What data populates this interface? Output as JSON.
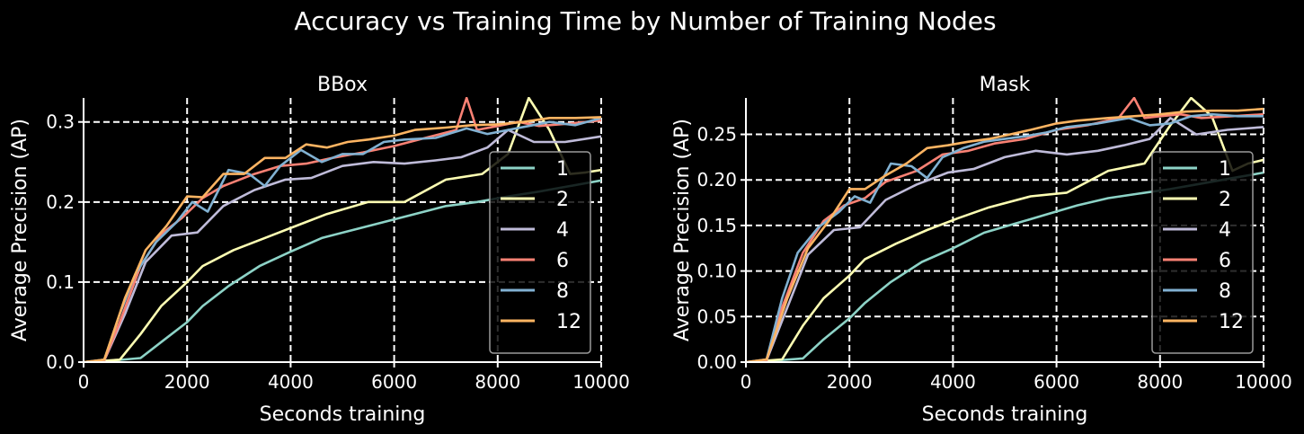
{
  "figure": {
    "suptitle": "Accuracy vs Training Time by Number of Training Nodes",
    "background": "#000000",
    "foreground": "#ffffff",
    "grid_color": "#ffffff"
  },
  "legend_colors": {
    "1": "#8dd3c7",
    "2": "#feffb3",
    "4": "#bfbbd9",
    "6": "#fa8174",
    "8": "#81b1d2",
    "12": "#fdb462"
  },
  "chart_data": [
    {
      "type": "line",
      "title": "BBox",
      "xlabel": "Seconds training",
      "ylabel": "Average Precision (AP)",
      "xlim": [
        0,
        10000
      ],
      "ylim": [
        0,
        0.33
      ],
      "xticks": [
        0,
        2000,
        4000,
        6000,
        8000,
        10000
      ],
      "xtick_labels": [
        "0",
        "2000",
        "4000",
        "6000",
        "8000",
        "10000"
      ],
      "yticks": [
        0,
        0.1,
        0.2,
        0.3
      ],
      "ytick_labels": [
        "0.0",
        "0.1",
        "0.2",
        "0.3"
      ],
      "grid": true,
      "legend": "lower-right",
      "series": [
        {
          "name": "1",
          "color": "#8dd3c7",
          "x": [
            0,
            400,
            1100,
            1500,
            2000,
            2300,
            2800,
            3400,
            4000,
            4600,
            5200,
            5800,
            6400,
            7000,
            7600,
            8200,
            8800,
            9400,
            10000
          ],
          "y": [
            0,
            0.001,
            0.005,
            0.025,
            0.05,
            0.07,
            0.095,
            0.12,
            0.138,
            0.155,
            0.165,
            0.175,
            0.185,
            0.195,
            0.2,
            0.207,
            0.213,
            0.22,
            0.227
          ]
        },
        {
          "name": "2",
          "color": "#feffb3",
          "x": [
            0,
            700,
            1100,
            1500,
            2000,
            2300,
            2900,
            3500,
            4100,
            4700,
            5500,
            6200,
            7000,
            7700,
            8200,
            8600,
            9000,
            9400,
            9700,
            10000
          ],
          "y": [
            0,
            0.003,
            0.035,
            0.07,
            0.1,
            0.12,
            0.14,
            0.155,
            0.17,
            0.185,
            0.2,
            0.2,
            0.228,
            0.235,
            0.26,
            0.33,
            0.29,
            0.235,
            0.237,
            0.24
          ]
        },
        {
          "name": "4",
          "color": "#bfbbd9",
          "x": [
            0,
            400,
            800,
            1200,
            1700,
            2200,
            2700,
            3300,
            3900,
            4400,
            5000,
            5600,
            6200,
            6800,
            7300,
            7800,
            8200,
            8700,
            9300,
            10000
          ],
          "y": [
            0,
            0.002,
            0.06,
            0.125,
            0.158,
            0.162,
            0.195,
            0.215,
            0.228,
            0.23,
            0.245,
            0.25,
            0.248,
            0.252,
            0.256,
            0.268,
            0.29,
            0.275,
            0.275,
            0.282
          ]
        },
        {
          "name": "6",
          "color": "#fa8174",
          "x": [
            0,
            400,
            700,
            1100,
            1500,
            1900,
            2300,
            2700,
            3300,
            3800,
            4300,
            4800,
            5400,
            6000,
            6600,
            7200,
            7400,
            7600,
            8000,
            8400,
            8800,
            9400,
            10000
          ],
          "y": [
            0,
            0.002,
            0.05,
            0.12,
            0.16,
            0.18,
            0.205,
            0.22,
            0.235,
            0.245,
            0.248,
            0.255,
            0.262,
            0.27,
            0.28,
            0.29,
            0.33,
            0.29,
            0.295,
            0.3,
            0.295,
            0.298,
            0.302
          ]
        },
        {
          "name": "8",
          "color": "#81b1d2",
          "x": [
            0,
            400,
            700,
            1000,
            1400,
            1800,
            2100,
            2400,
            2800,
            3200,
            3500,
            3800,
            4200,
            4600,
            5000,
            5400,
            5800,
            6200,
            6800,
            7400,
            7800,
            8200,
            8600,
            9000,
            9500,
            10000
          ],
          "y": [
            0,
            0.003,
            0.06,
            0.11,
            0.15,
            0.175,
            0.2,
            0.188,
            0.24,
            0.235,
            0.22,
            0.245,
            0.265,
            0.25,
            0.26,
            0.26,
            0.275,
            0.278,
            0.28,
            0.292,
            0.285,
            0.29,
            0.295,
            0.3,
            0.296,
            0.305
          ]
        },
        {
          "name": "12",
          "color": "#fdb462",
          "x": [
            0,
            400,
            800,
            1200,
            1600,
            2000,
            2300,
            2700,
            3100,
            3500,
            3900,
            4300,
            4700,
            5100,
            5500,
            6000,
            6400,
            7000,
            7500,
            8000,
            8500,
            9000,
            9500,
            10000
          ],
          "y": [
            0,
            0.003,
            0.08,
            0.14,
            0.17,
            0.207,
            0.206,
            0.235,
            0.235,
            0.255,
            0.255,
            0.272,
            0.268,
            0.275,
            0.278,
            0.283,
            0.29,
            0.293,
            0.296,
            0.297,
            0.3,
            0.305,
            0.305,
            0.306
          ]
        }
      ]
    },
    {
      "type": "line",
      "title": "Mask",
      "xlabel": "Seconds training",
      "ylabel": "Average Precision (AP)",
      "xlim": [
        0,
        10000
      ],
      "ylim": [
        0,
        0.29
      ],
      "xticks": [
        0,
        2000,
        4000,
        6000,
        8000,
        10000
      ],
      "xtick_labels": [
        "0",
        "2000",
        "4000",
        "6000",
        "8000",
        "10000"
      ],
      "yticks": [
        0,
        0.05,
        0.1,
        0.15,
        0.2,
        0.25
      ],
      "ytick_labels": [
        "0.00",
        "0.05",
        "0.10",
        "0.15",
        "0.20",
        "0.25"
      ],
      "grid": true,
      "legend": "lower-right",
      "series": [
        {
          "name": "1",
          "color": "#8dd3c7",
          "x": [
            0,
            400,
            1100,
            1500,
            2000,
            2300,
            2800,
            3400,
            4000,
            4600,
            5200,
            5800,
            6400,
            7000,
            7600,
            8200,
            8800,
            9400,
            10000
          ],
          "y": [
            0,
            0.001,
            0.004,
            0.025,
            0.048,
            0.065,
            0.088,
            0.11,
            0.125,
            0.142,
            0.152,
            0.162,
            0.172,
            0.18,
            0.185,
            0.19,
            0.196,
            0.202,
            0.208
          ]
        },
        {
          "name": "2",
          "color": "#feffb3",
          "x": [
            0,
            700,
            1100,
            1500,
            2000,
            2300,
            2900,
            3500,
            4100,
            4700,
            5500,
            6200,
            7000,
            7700,
            8200,
            8600,
            9000,
            9400,
            9700,
            10000
          ],
          "y": [
            0,
            0.003,
            0.04,
            0.07,
            0.095,
            0.113,
            0.13,
            0.145,
            0.158,
            0.17,
            0.182,
            0.186,
            0.21,
            0.218,
            0.26,
            0.29,
            0.27,
            0.21,
            0.218,
            0.222
          ]
        },
        {
          "name": "4",
          "color": "#bfbbd9",
          "x": [
            0,
            400,
            800,
            1200,
            1700,
            2200,
            2700,
            3300,
            3900,
            4400,
            5000,
            5600,
            6200,
            6800,
            7300,
            7800,
            8200,
            8700,
            9300,
            10000
          ],
          "y": [
            0,
            0.002,
            0.06,
            0.118,
            0.145,
            0.148,
            0.178,
            0.195,
            0.208,
            0.212,
            0.225,
            0.232,
            0.228,
            0.232,
            0.238,
            0.245,
            0.268,
            0.25,
            0.255,
            0.258
          ]
        },
        {
          "name": "6",
          "color": "#fa8174",
          "x": [
            0,
            400,
            700,
            1100,
            1500,
            1900,
            2300,
            2700,
            3300,
            3800,
            4300,
            4800,
            5400,
            6000,
            6600,
            7200,
            7500,
            7700,
            8000,
            8400,
            8800,
            9400,
            10000
          ],
          "y": [
            0,
            0.002,
            0.06,
            0.12,
            0.155,
            0.172,
            0.18,
            0.198,
            0.21,
            0.228,
            0.232,
            0.24,
            0.245,
            0.255,
            0.26,
            0.268,
            0.29,
            0.268,
            0.27,
            0.272,
            0.268,
            0.27,
            0.272
          ]
        },
        {
          "name": "8",
          "color": "#81b1d2",
          "x": [
            0,
            400,
            700,
            1000,
            1400,
            1800,
            2100,
            2400,
            2800,
            3200,
            3500,
            3800,
            4200,
            4600,
            5000,
            5400,
            5800,
            6200,
            6800,
            7400,
            7800,
            8200,
            8600,
            9000,
            9500,
            10000
          ],
          "y": [
            0,
            0.003,
            0.07,
            0.12,
            0.148,
            0.165,
            0.182,
            0.175,
            0.218,
            0.215,
            0.202,
            0.225,
            0.235,
            0.242,
            0.245,
            0.248,
            0.252,
            0.258,
            0.262,
            0.268,
            0.26,
            0.262,
            0.27,
            0.272,
            0.27,
            0.27
          ]
        },
        {
          "name": "12",
          "color": "#fdb462",
          "x": [
            0,
            400,
            800,
            1200,
            1600,
            2000,
            2300,
            2700,
            3100,
            3500,
            3900,
            4300,
            4700,
            5100,
            5500,
            6000,
            6400,
            7000,
            7500,
            8000,
            8500,
            9000,
            9500,
            10000
          ],
          "y": [
            0,
            0.003,
            0.07,
            0.125,
            0.155,
            0.19,
            0.19,
            0.205,
            0.218,
            0.235,
            0.238,
            0.242,
            0.245,
            0.25,
            0.255,
            0.262,
            0.265,
            0.268,
            0.27,
            0.272,
            0.275,
            0.276,
            0.276,
            0.278
          ]
        }
      ]
    }
  ]
}
